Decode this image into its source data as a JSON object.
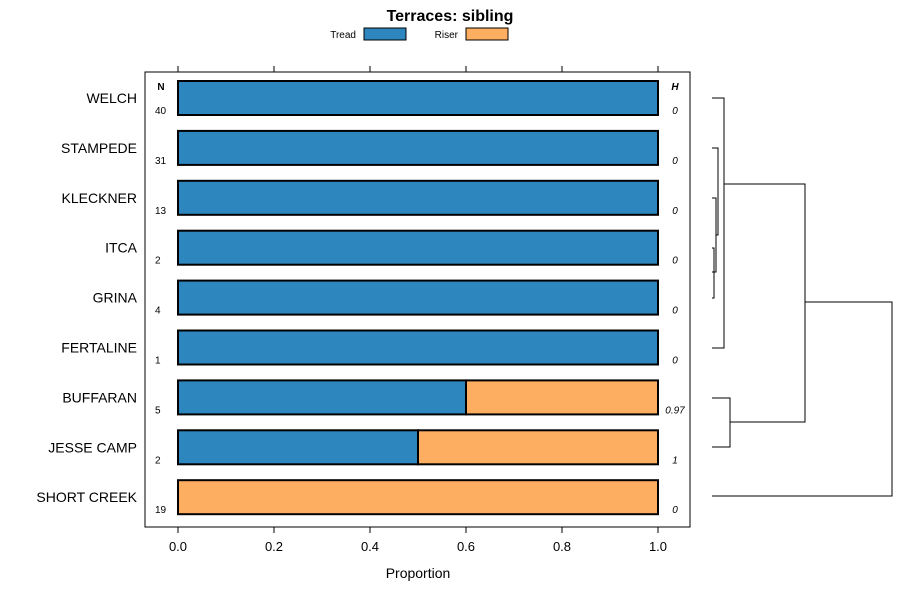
{
  "chart_data": {
    "type": "bar",
    "stacked": true,
    "orientation": "horizontal",
    "title": "Terraces: sibling",
    "xlabel": "Proportion",
    "ylabel": "",
    "xlim": [
      0,
      1
    ],
    "x_ticks": [
      "0.0",
      "0.2",
      "0.4",
      "0.6",
      "0.8",
      "1.0"
    ],
    "categories": [
      "WELCH",
      "STAMPEDE",
      "KLECKNER",
      "ITCA",
      "GRINA",
      "FERTALINE",
      "BUFFARAN",
      "JESSE CAMP",
      "SHORT CREEK"
    ],
    "series": [
      {
        "name": "Tread",
        "color": "#2e86be",
        "values": [
          1.0,
          1.0,
          1.0,
          1.0,
          1.0,
          1.0,
          0.6,
          0.5,
          0.0
        ]
      },
      {
        "name": "Riser",
        "color": "#fdae61",
        "values": [
          0.0,
          0.0,
          0.0,
          0.0,
          0.0,
          0.0,
          0.4,
          0.5,
          1.0
        ]
      }
    ],
    "n_header": "N",
    "n_values": [
      "40",
      "31",
      "13",
      "2",
      "4",
      "1",
      "5",
      "2",
      "19"
    ],
    "h_header": "H",
    "h_values": [
      "0",
      "0",
      "0",
      "0",
      "0",
      "0",
      "0.97",
      "1",
      "0"
    ],
    "legend": [
      "Tread",
      "Riser"
    ],
    "legend_position": "top",
    "dendrogram": "present"
  }
}
